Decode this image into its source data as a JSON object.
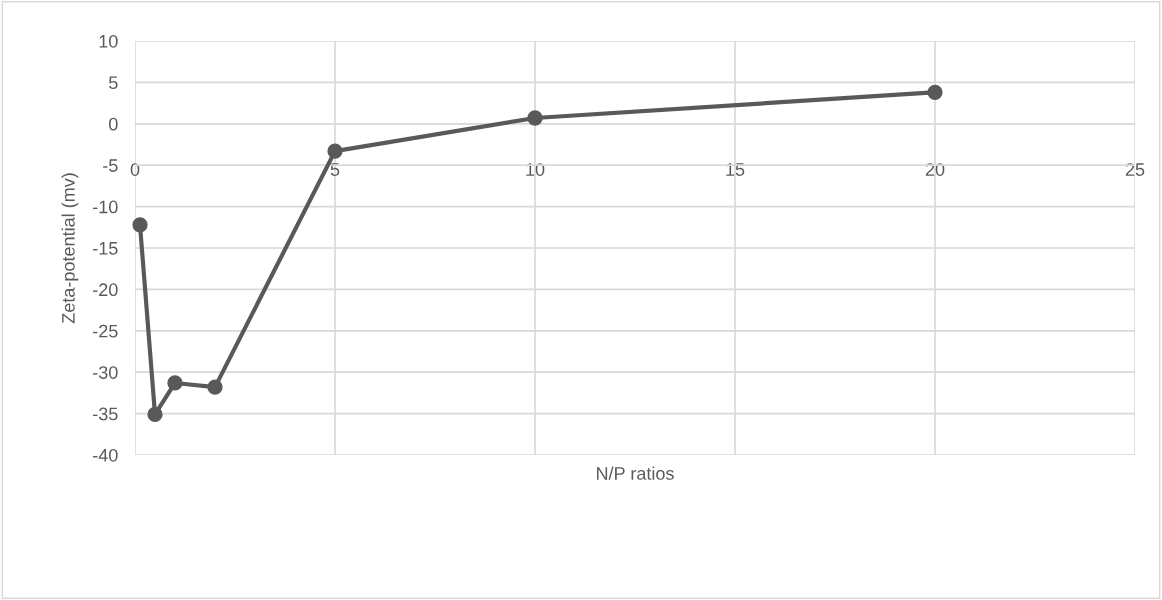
{
  "chart_data": {
    "type": "line",
    "xlabel": "N/P ratios",
    "ylabel": "Zeta-potential (mv)",
    "x": [
      0.125,
      0.5,
      1,
      2,
      5,
      10,
      20
    ],
    "series": [
      {
        "color": "#595959",
        "values": [
          -12.2,
          -35.1,
          -31.3,
          -31.8,
          -3.3,
          0.7,
          3.8
        ]
      }
    ],
    "xlim": [
      0,
      25
    ],
    "xticks": [
      0,
      5,
      10,
      15,
      20,
      25
    ],
    "ylim": [
      -40,
      10
    ],
    "yticks": [
      -40,
      -35,
      -30,
      -25,
      -20,
      -15,
      -10,
      -5,
      0,
      5,
      10
    ],
    "grid": true,
    "marker": "circle",
    "line_style": "solid"
  }
}
